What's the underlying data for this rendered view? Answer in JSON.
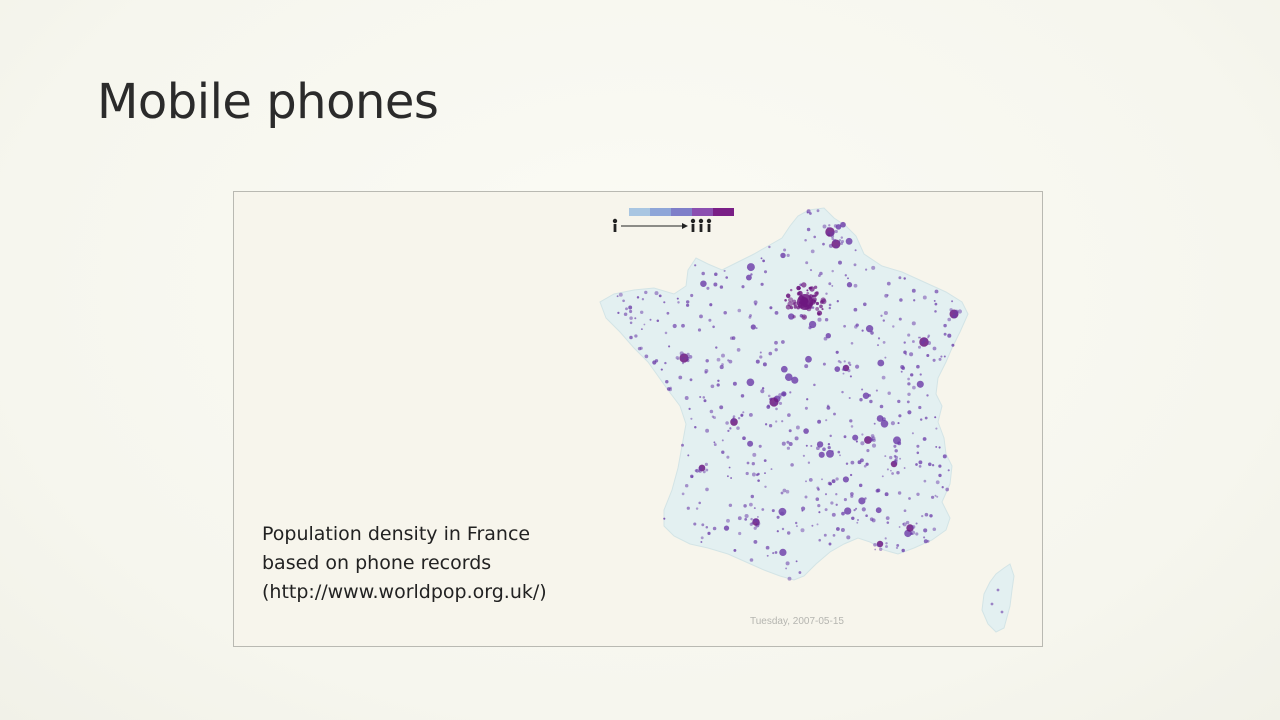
{
  "slide": {
    "title": "Mobile phones"
  },
  "figure": {
    "caption_lines": [
      "Population density in France",
      "based on phone records",
      "(http://www.worldpop.org.uk/)"
    ],
    "date_label": "Tuesday, 2007-05-15",
    "legend": {
      "low_icon": "single-person-icon",
      "high_icon": "three-people-icon",
      "colors": [
        "#a9c6e2",
        "#8fa6d8",
        "#7f7fc9",
        "#8b4fb0",
        "#7a1f86"
      ]
    },
    "map": {
      "region": "France",
      "land_color": "#e3f0f1",
      "dot_color": "#6a3aa8",
      "hotspot_color": "#6d1780"
    }
  }
}
